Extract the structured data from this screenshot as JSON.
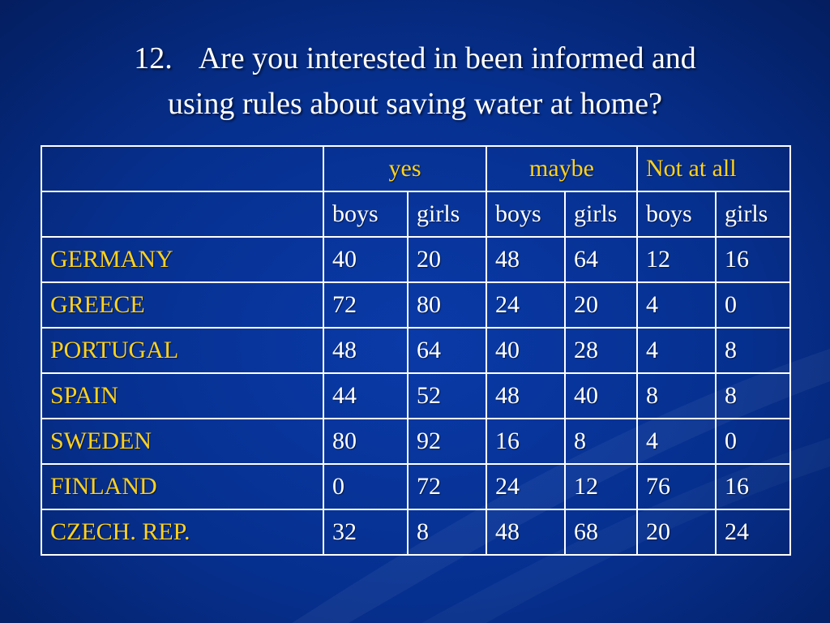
{
  "slide": {
    "title_number": "12.",
    "title_line1": "Are you interested in been informed and",
    "title_line2": "using rules about saving water at home?"
  },
  "table": {
    "groups": [
      "yes",
      "maybe",
      "Not at all"
    ],
    "subheaders": [
      "boys",
      "girls",
      "boys",
      "girls",
      "boys",
      "girls"
    ],
    "rows": [
      {
        "country": "GERMANY",
        "values": [
          "40",
          "20",
          "48",
          "64",
          "12",
          "16"
        ]
      },
      {
        "country": "GREECE",
        "values": [
          "72",
          "80",
          "24",
          "20",
          "4",
          "0"
        ]
      },
      {
        "country": "PORTUGAL",
        "values": [
          "48",
          "64",
          "40",
          "28",
          "4",
          "8"
        ]
      },
      {
        "country": "SPAIN",
        "values": [
          "44",
          "52",
          "48",
          "40",
          "8",
          "8"
        ]
      },
      {
        "country": "SWEDEN",
        "values": [
          "80",
          "92",
          "16",
          "8",
          "4",
          "0"
        ]
      },
      {
        "country": "FINLAND",
        "values": [
          "0",
          "72",
          "24",
          "12",
          "76",
          "16"
        ]
      },
      {
        "country": "CZECH. REP.",
        "values": [
          "32",
          "8",
          "48",
          "68",
          "20",
          "24"
        ]
      }
    ]
  },
  "colors": {
    "background": "#06308f",
    "text": "#ffffff",
    "highlight": "#ffd21e",
    "border": "#ffffff"
  }
}
